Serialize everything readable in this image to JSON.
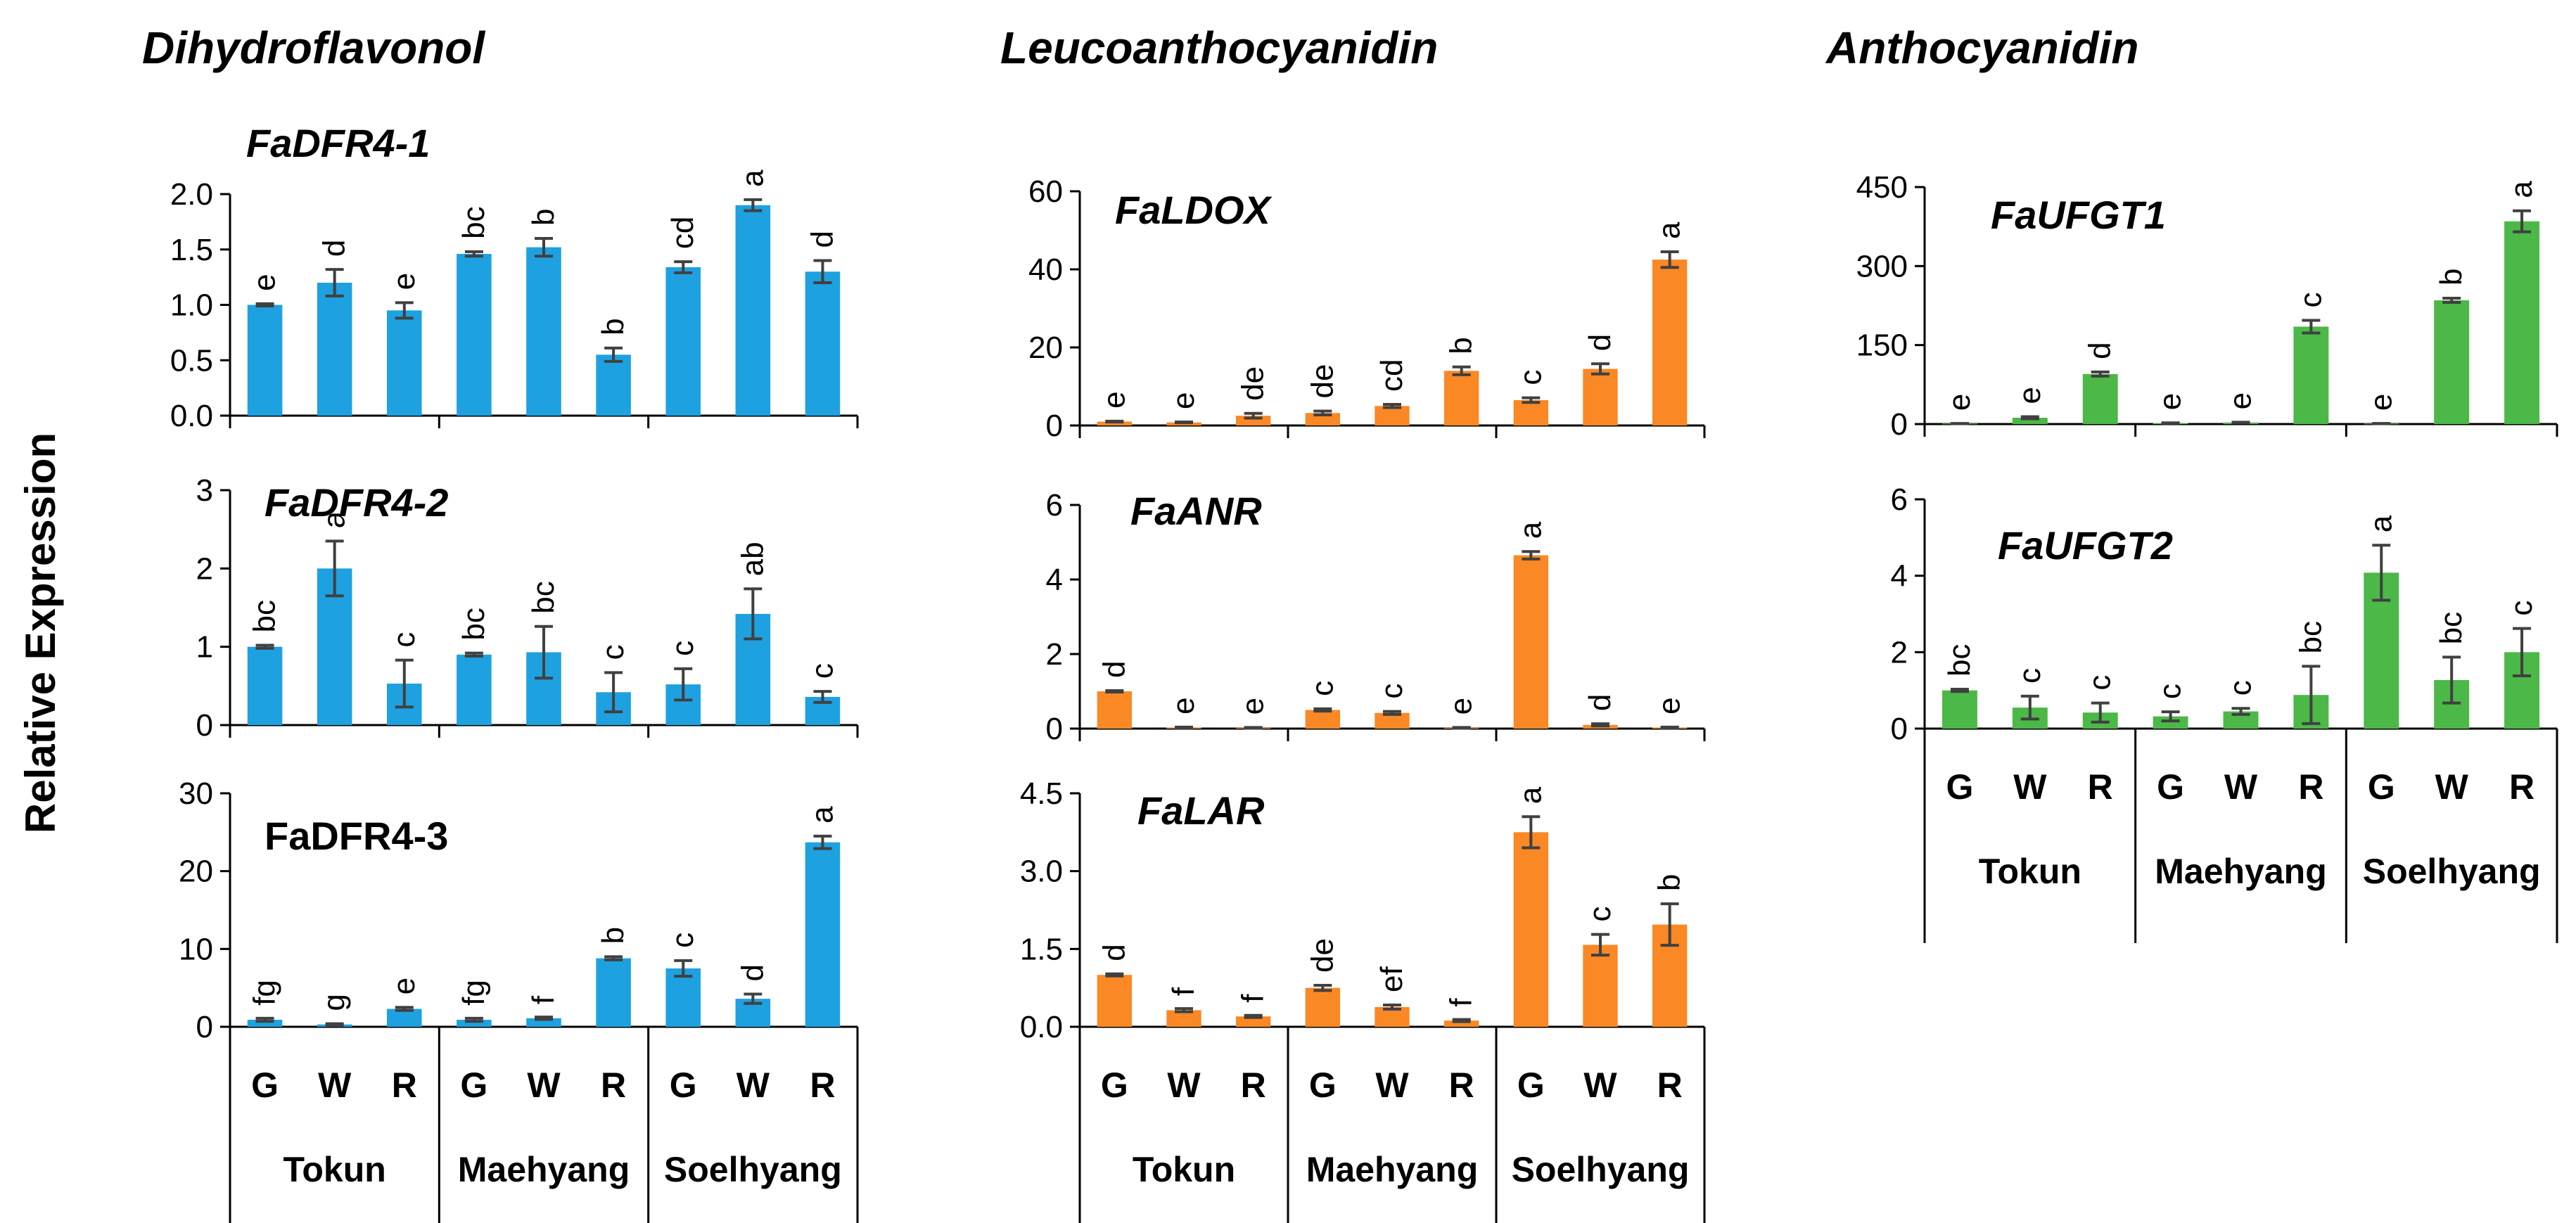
{
  "y_axis_label": "Relative Expression",
  "sections": [
    {
      "title": "Dihydroflavonol",
      "color": "#1EA1E0"
    },
    {
      "title": "Leucoanthocyanidin",
      "color": "#F98825"
    },
    {
      "title": "Anthocyanidin",
      "color": "#4CB847"
    }
  ],
  "x_categories": [
    "G",
    "W",
    "R",
    "G",
    "W",
    "R",
    "G",
    "W",
    "R"
  ],
  "x_groups": [
    "Tokun",
    "Maehyang",
    "Soelhyang"
  ],
  "chart_data": [
    {
      "type": "bar",
      "title": "FaDFR4-1",
      "title_italic": true,
      "section": 0,
      "categories": [
        "G",
        "W",
        "R",
        "G",
        "W",
        "R",
        "G",
        "W",
        "R"
      ],
      "values": [
        1.0,
        1.2,
        0.95,
        1.46,
        1.52,
        0.55,
        1.34,
        1.9,
        1.3
      ],
      "errors": [
        0.01,
        0.12,
        0.07,
        0.02,
        0.08,
        0.06,
        0.05,
        0.05,
        0.1
      ],
      "letters": [
        "e",
        "d",
        "e",
        "bc",
        "b",
        "b",
        "cd",
        "a",
        "d"
      ],
      "ylim": [
        0,
        2.0
      ],
      "yticks": [
        "0.0",
        "0.5",
        "1.0",
        "1.5",
        "2.0"
      ],
      "color": "#1EA1E0"
    },
    {
      "type": "bar",
      "title": "FaDFR4-2",
      "title_italic": true,
      "section": 0,
      "categories": [
        "G",
        "W",
        "R",
        "G",
        "W",
        "R",
        "G",
        "W",
        "R"
      ],
      "values": [
        1.0,
        2.0,
        0.53,
        0.9,
        0.93,
        0.42,
        0.52,
        1.42,
        0.36
      ],
      "errors": [
        0.02,
        0.35,
        0.3,
        0.02,
        0.33,
        0.25,
        0.2,
        0.32,
        0.07
      ],
      "letters": [
        "bc",
        "a",
        "c",
        "bc",
        "bc",
        "c",
        "c",
        "ab",
        "c"
      ],
      "ylim": [
        0,
        3
      ],
      "yticks": [
        "0",
        "1",
        "2",
        "3"
      ],
      "color": "#1EA1E0"
    },
    {
      "type": "bar",
      "title": "FaDFR4-3",
      "title_italic": false,
      "section": 0,
      "categories": [
        "G",
        "W",
        "R",
        "G",
        "W",
        "R",
        "G",
        "W",
        "R"
      ],
      "values": [
        0.9,
        0.3,
        2.3,
        0.9,
        1.1,
        8.8,
        7.5,
        3.6,
        23.7
      ],
      "errors": [
        0.2,
        0.1,
        0.2,
        0.2,
        0.15,
        0.2,
        1.0,
        0.6,
        0.8
      ],
      "letters": [
        "fg",
        "g",
        "e",
        "fg",
        "f",
        "b",
        "c",
        "d",
        "a"
      ],
      "ylim": [
        0,
        30
      ],
      "yticks": [
        "0",
        "10",
        "20",
        "30"
      ],
      "color": "#1EA1E0"
    },
    {
      "type": "bar",
      "title": "FaLDOX",
      "title_italic": true,
      "section": 1,
      "categories": [
        "G",
        "W",
        "R",
        "G",
        "W",
        "R",
        "G",
        "W",
        "R"
      ],
      "values": [
        1.0,
        0.8,
        2.5,
        3.2,
        5.0,
        14.0,
        6.5,
        14.5,
        42.5
      ],
      "errors": [
        0.1,
        0.1,
        0.6,
        0.5,
        0.4,
        1.0,
        0.6,
        1.3,
        2.0
      ],
      "letters": [
        "e",
        "e",
        "de",
        "de",
        "cd",
        "b",
        "c",
        "d",
        "a"
      ],
      "ylim": [
        0,
        60
      ],
      "yticks": [
        "0",
        "20",
        "40",
        "60"
      ],
      "color": "#F98825"
    },
    {
      "type": "bar",
      "title": "FaANR",
      "title_italic": true,
      "section": 1,
      "categories": [
        "G",
        "W",
        "R",
        "G",
        "W",
        "R",
        "G",
        "W",
        "R"
      ],
      "values": [
        1.0,
        0.03,
        0.02,
        0.5,
        0.42,
        0.02,
        4.65,
        0.1,
        0.03
      ],
      "errors": [
        0.02,
        0.01,
        0.01,
        0.03,
        0.04,
        0.01,
        0.1,
        0.03,
        0.01
      ],
      "letters": [
        "d",
        "e",
        "e",
        "c",
        "c",
        "e",
        "a",
        "d",
        "e"
      ],
      "ylim": [
        0,
        6
      ],
      "yticks": [
        "0",
        "2",
        "4",
        "6"
      ],
      "color": "#F98825"
    },
    {
      "type": "bar",
      "title": "FaLAR",
      "title_italic": true,
      "section": 1,
      "categories": [
        "G",
        "W",
        "R",
        "G",
        "W",
        "R",
        "G",
        "W",
        "R"
      ],
      "values": [
        1.0,
        0.32,
        0.2,
        0.75,
        0.38,
        0.12,
        3.75,
        1.58,
        1.97
      ],
      "errors": [
        0.02,
        0.03,
        0.02,
        0.05,
        0.04,
        0.02,
        0.3,
        0.2,
        0.4
      ],
      "letters": [
        "d",
        "f",
        "f",
        "de",
        "ef",
        "f",
        "a",
        "c",
        "b"
      ],
      "ylim": [
        0,
        4.5
      ],
      "yticks": [
        "0.0",
        "1.5",
        "3.0",
        "4.5"
      ],
      "color": "#F98825"
    },
    {
      "type": "bar",
      "title": "FaUFGT1",
      "title_italic": true,
      "section": 2,
      "categories": [
        "G",
        "W",
        "R",
        "G",
        "W",
        "R",
        "G",
        "W",
        "R"
      ],
      "values": [
        1.0,
        12.0,
        95.0,
        2.0,
        3.0,
        185.0,
        1.0,
        235.0,
        385.0
      ],
      "errors": [
        0.2,
        2.0,
        4.0,
        0.3,
        0.5,
        12.0,
        0.2,
        4.0,
        20.0
      ],
      "letters": [
        "e",
        "e",
        "d",
        "e",
        "e",
        "c",
        "e",
        "b",
        "a"
      ],
      "ylim": [
        0,
        450
      ],
      "yticks": [
        "0",
        "150",
        "300",
        "450"
      ],
      "color": "#4CB847"
    },
    {
      "type": "bar",
      "title": "FaUFGT2",
      "title_italic": true,
      "section": 2,
      "categories": [
        "G",
        "W",
        "R",
        "G",
        "W",
        "R",
        "G",
        "W",
        "R"
      ],
      "values": [
        1.0,
        0.55,
        0.42,
        0.32,
        0.45,
        0.88,
        4.08,
        1.27,
        2.0
      ],
      "errors": [
        0.03,
        0.3,
        0.25,
        0.12,
        0.08,
        0.75,
        0.72,
        0.6,
        0.62
      ],
      "letters": [
        "bc",
        "c",
        "c",
        "c",
        "c",
        "bc",
        "a",
        "bc",
        "c"
      ],
      "ylim": [
        0,
        6
      ],
      "yticks": [
        "0",
        "2",
        "4",
        "6"
      ],
      "color": "#4CB847"
    }
  ]
}
